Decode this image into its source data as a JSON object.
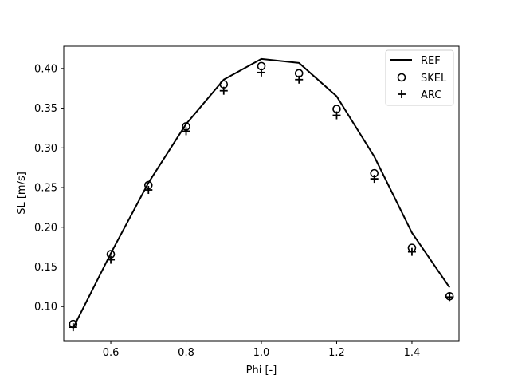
{
  "chart_data": {
    "type": "line",
    "title": "",
    "xlabel": "Phi [-]",
    "ylabel": "SL [m/s]",
    "xlim": [
      0.475,
      1.525
    ],
    "ylim": [
      0.057,
      0.428
    ],
    "x_ticks": [
      0.6,
      0.8,
      1.0,
      1.2,
      1.4
    ],
    "x_tick_labels": [
      "0.6",
      "0.8",
      "1.0",
      "1.2",
      "1.4"
    ],
    "y_ticks": [
      0.1,
      0.15,
      0.2,
      0.25,
      0.3,
      0.35,
      0.4
    ],
    "y_tick_labels": [
      "0.10",
      "0.15",
      "0.20",
      "0.25",
      "0.30",
      "0.35",
      "0.40"
    ],
    "grid": false,
    "legend_position": "top-right",
    "x": [
      0.5,
      0.6,
      0.7,
      0.8,
      0.9,
      1.0,
      1.1,
      1.2,
      1.3,
      1.4,
      1.5
    ],
    "series": [
      {
        "name": "REF",
        "style": "line",
        "color": "#000000",
        "values": [
          0.073,
          0.167,
          0.256,
          0.33,
          0.386,
          0.412,
          0.407,
          0.365,
          0.289,
          0.193,
          0.124
        ]
      },
      {
        "name": "SKEL",
        "style": "marker-circle",
        "color": "#000000",
        "values": [
          0.078,
          0.166,
          0.253,
          0.327,
          0.38,
          0.403,
          0.394,
          0.349,
          0.268,
          0.174,
          0.113
        ]
      },
      {
        "name": "ARC",
        "style": "marker-plus",
        "color": "#000000",
        "values": [
          0.074,
          0.159,
          0.247,
          0.321,
          0.372,
          0.395,
          0.386,
          0.341,
          0.261,
          0.169,
          0.112
        ]
      }
    ]
  }
}
